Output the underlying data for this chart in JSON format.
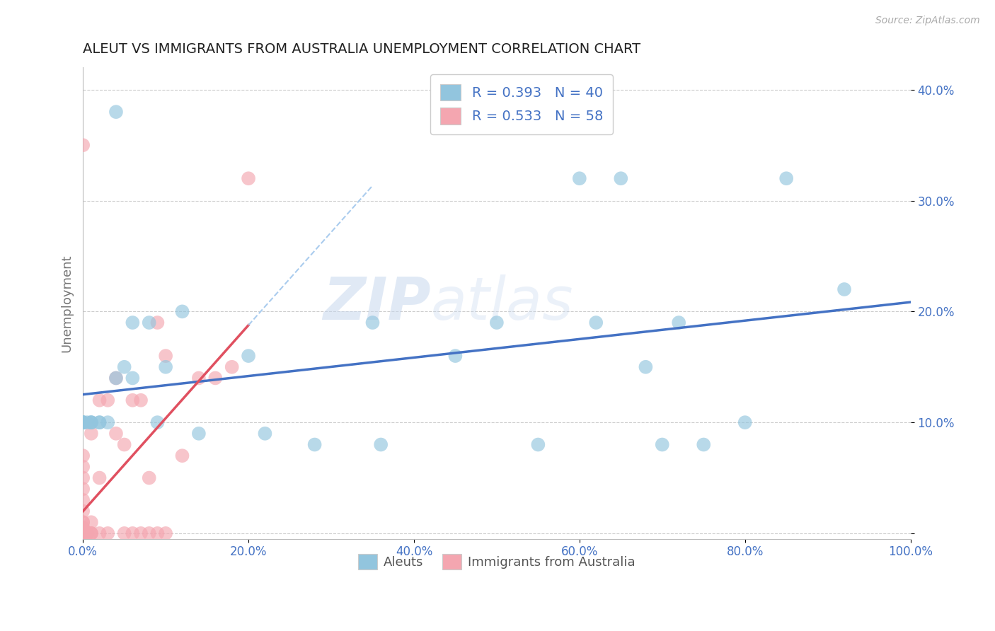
{
  "title": "ALEUT VS IMMIGRANTS FROM AUSTRALIA UNEMPLOYMENT CORRELATION CHART",
  "source": "Source: ZipAtlas.com",
  "ylabel": "Unemployment",
  "watermark": "ZIPatlas",
  "xlim": [
    0,
    1.0
  ],
  "ylim": [
    -0.005,
    0.42
  ],
  "xticks": [
    0.0,
    0.2,
    0.4,
    0.6,
    0.8,
    1.0
  ],
  "yticks": [
    0.0,
    0.1,
    0.2,
    0.3,
    0.4
  ],
  "xtick_labels": [
    "0.0%",
    "20.0%",
    "40.0%",
    "60.0%",
    "80.0%",
    "100.0%"
  ],
  "ytick_labels": [
    "",
    "10.0%",
    "20.0%",
    "30.0%",
    "40.0%"
  ],
  "aleuts_color": "#92C5DE",
  "immigrants_color": "#F4A6B0",
  "aleuts_R": 0.393,
  "aleuts_N": 40,
  "immigrants_R": 0.533,
  "immigrants_N": 58,
  "legend_label_aleuts": "Aleuts",
  "legend_label_immigrants": "Immigrants from Australia",
  "aleuts_x": [
    0.04,
    0.0,
    0.0,
    0.0,
    0.0,
    0.0,
    0.005,
    0.01,
    0.01,
    0.01,
    0.02,
    0.02,
    0.03,
    0.04,
    0.05,
    0.06,
    0.06,
    0.08,
    0.09,
    0.1,
    0.12,
    0.14,
    0.2,
    0.22,
    0.28,
    0.35,
    0.36,
    0.45,
    0.5,
    0.55,
    0.6,
    0.62,
    0.65,
    0.68,
    0.7,
    0.72,
    0.75,
    0.8,
    0.85,
    0.92
  ],
  "aleuts_y": [
    0.38,
    0.1,
    0.1,
    0.1,
    0.1,
    0.1,
    0.1,
    0.1,
    0.1,
    0.1,
    0.1,
    0.1,
    0.1,
    0.14,
    0.15,
    0.19,
    0.14,
    0.19,
    0.1,
    0.15,
    0.2,
    0.09,
    0.16,
    0.09,
    0.08,
    0.19,
    0.08,
    0.16,
    0.19,
    0.08,
    0.32,
    0.19,
    0.32,
    0.15,
    0.08,
    0.19,
    0.08,
    0.1,
    0.32,
    0.22
  ],
  "immigrants_x": [
    0.0,
    0.0,
    0.0,
    0.0,
    0.0,
    0.0,
    0.0,
    0.0,
    0.0,
    0.0,
    0.0,
    0.0,
    0.0,
    0.0,
    0.0,
    0.0,
    0.0,
    0.0,
    0.0,
    0.0,
    0.0,
    0.0,
    0.0,
    0.0,
    0.005,
    0.005,
    0.005,
    0.005,
    0.005,
    0.01,
    0.01,
    0.01,
    0.01,
    0.01,
    0.02,
    0.02,
    0.02,
    0.03,
    0.03,
    0.04,
    0.04,
    0.05,
    0.05,
    0.06,
    0.06,
    0.07,
    0.07,
    0.08,
    0.08,
    0.09,
    0.09,
    0.1,
    0.1,
    0.12,
    0.14,
    0.16,
    0.18,
    0.2
  ],
  "immigrants_y": [
    0.0,
    0.0,
    0.0,
    0.0,
    0.0,
    0.0,
    0.0,
    0.0,
    0.0,
    0.0,
    0.0,
    0.0,
    0.0,
    0.005,
    0.005,
    0.01,
    0.01,
    0.02,
    0.03,
    0.04,
    0.05,
    0.06,
    0.07,
    0.35,
    0.0,
    0.0,
    0.0,
    0.0,
    0.0,
    0.0,
    0.0,
    0.0,
    0.01,
    0.09,
    0.0,
    0.05,
    0.12,
    0.0,
    0.12,
    0.09,
    0.14,
    0.0,
    0.08,
    0.0,
    0.12,
    0.0,
    0.12,
    0.0,
    0.05,
    0.0,
    0.19,
    0.0,
    0.16,
    0.07,
    0.14,
    0.14,
    0.15,
    0.32
  ],
  "background_color": "#ffffff",
  "grid_color": "#cccccc",
  "title_color": "#222222",
  "axis_label_color": "#777777",
  "tick_color": "#4472c4",
  "legend_text_color": "#4472c4",
  "aleuts_line_color": "#4472c4",
  "immigrants_line_color": "#e05060",
  "aleuts_line_dashed_color": "#aaccee"
}
